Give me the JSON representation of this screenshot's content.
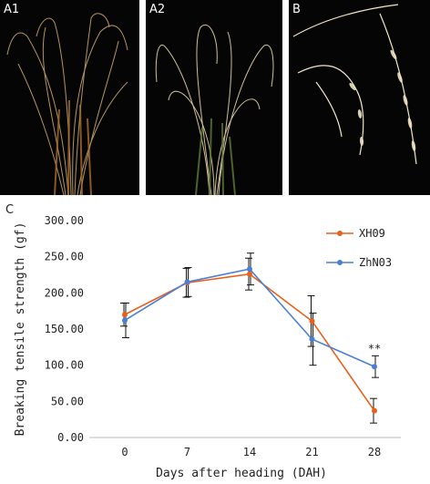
{
  "panels": {
    "a1_label": "A1",
    "a2_label": "A2",
    "b_label": "B",
    "c_label": "C"
  },
  "chart_data": {
    "type": "line",
    "title": "",
    "xlabel": "Days after heading (DAH)",
    "ylabel": "Breaking tensile strength (gf)",
    "x": [
      0,
      7,
      14,
      21,
      28
    ],
    "x_tick_labels": [
      "0",
      "7",
      "14",
      "21",
      "28"
    ],
    "ylim": [
      0,
      300
    ],
    "y_ticks": [
      0,
      50,
      100,
      150,
      200,
      250,
      300
    ],
    "y_tick_labels": [
      "0.00",
      "50.00",
      "100.00",
      "150.00",
      "200.00",
      "250.00",
      "300.00"
    ],
    "grid": false,
    "legend_position": "top-right",
    "series": [
      {
        "name": "XH09",
        "color": "#e8601c",
        "values": [
          170,
          214,
          226,
          161,
          37
        ],
        "errors": [
          16,
          20,
          22,
          35,
          17
        ]
      },
      {
        "name": "ZhN03",
        "color": "#4a7fd4",
        "values": [
          162,
          215,
          233,
          136,
          98
        ],
        "errors": [
          24,
          20,
          22,
          36,
          15
        ]
      }
    ],
    "annotations": [
      {
        "x": 28,
        "y": 118,
        "text": "**"
      }
    ]
  }
}
